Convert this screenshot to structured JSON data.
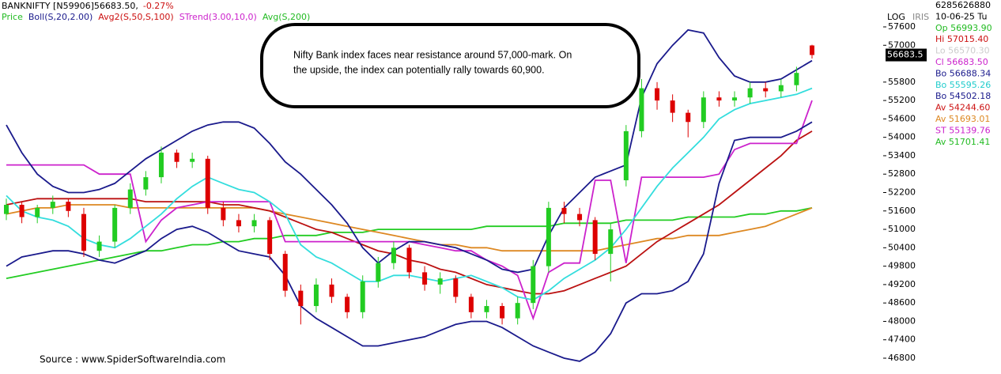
{
  "header": {
    "symbol": "BANKNIFTY [N59906]56683.50,",
    "change": "-0.27%",
    "legend": [
      {
        "name": "Price",
        "color": "#22bb22"
      },
      {
        "name": "Boll(S,20,2.00)",
        "color": "#1a1a8c"
      },
      {
        "name": "Avg2(S,50,S,100)",
        "color": "#cc1111"
      },
      {
        "name": "STrend(3.00,10,0)",
        "color": "#cc22cc"
      },
      {
        "name": "Avg(S,200)",
        "color": "#22bb22"
      }
    ]
  },
  "annotation": {
    "lines": [
      "Nifty Bank index faces near resistance around 57,000-mark. On",
      "the upside, the index can potentially rally towards 60,900."
    ]
  },
  "source": "Source : www.SpiderSoftwareIndia.com",
  "corner": {
    "log": "LOG",
    "iris": "IRIS"
  },
  "panel": [
    {
      "text": "6285626880",
      "color": "#000000"
    },
    {
      "text": "10-06-25 Tu",
      "color": "#000000"
    },
    {
      "text": "Op 56993.90",
      "color": "#22bb22"
    },
    {
      "text": "Hi 57015.40",
      "color": "#cc1111"
    },
    {
      "text": "Lo 56570.30",
      "color": "#cccccc"
    },
    {
      "text": "Cl 56683.50",
      "color": "#cc22cc"
    },
    {
      "text": "Bo 56688.34",
      "color": "#1a1a8c"
    },
    {
      "text": "Bo 55595.26",
      "color": "#22cccc"
    },
    {
      "text": "Bo 54502.18",
      "color": "#1a1a8c"
    },
    {
      "text": "Av 54244.60",
      "color": "#cc1111"
    },
    {
      "text": "Av 51693.01",
      "color": "#dd8822"
    },
    {
      "text": "ST 55139.76",
      "color": "#cc22cc"
    },
    {
      "text": "Av 51701.41",
      "color": "#22bb22"
    }
  ],
  "chart_data": {
    "type": "candlestick",
    "up_color": "#22cc22",
    "down_color": "#dd0000",
    "ylim": [
      46491,
      58476
    ],
    "yticks": [
      46800,
      47400,
      48000,
      48600,
      49200,
      49800,
      50400,
      51000,
      51600,
      52200,
      52800,
      53400,
      54000,
      54600,
      55200,
      55800,
      57000,
      57600
    ],
    "price_marker": 56683.5,
    "open": [
      51500,
      51800,
      51400,
      51700,
      51900,
      51500,
      50300,
      50600,
      51700,
      52300,
      52700,
      53500,
      53200,
      53300,
      51700,
      51300,
      51100,
      51300,
      50200,
      49000,
      48500,
      49200,
      48800,
      48300,
      49300,
      49900,
      50400,
      49600,
      49200,
      49400,
      48800,
      48300,
      48500,
      48100,
      48600,
      49800,
      51700,
      51500,
      51300,
      50200,
      52600,
      54200,
      55600,
      55200,
      54800,
      54500,
      55300,
      55200,
      55300,
      55600,
      55500,
      55700,
      56993.9
    ],
    "high": [
      52000,
      51900,
      51800,
      52100,
      52000,
      51700,
      50800,
      51800,
      52500,
      52900,
      53700,
      53600,
      53500,
      53400,
      51900,
      51500,
      51500,
      51400,
      50300,
      49200,
      49400,
      49400,
      48900,
      49500,
      50100,
      50600,
      50500,
      49800,
      49600,
      49500,
      48900,
      48700,
      48600,
      48800,
      50000,
      51900,
      51900,
      51700,
      51400,
      51200,
      54400,
      55900,
      55800,
      55400,
      54900,
      55500,
      55500,
      55500,
      55800,
      55800,
      55900,
      56300,
      57015.4
    ],
    "low": [
      51300,
      51200,
      51200,
      51500,
      51400,
      50100,
      50100,
      50400,
      51500,
      52100,
      52500,
      53000,
      53000,
      51500,
      51100,
      50900,
      50900,
      50000,
      48800,
      47900,
      48300,
      48600,
      48100,
      48100,
      49100,
      49700,
      49400,
      49000,
      48900,
      48600,
      48100,
      48100,
      47900,
      47900,
      48400,
      49600,
      51200,
      51100,
      50000,
      49300,
      52400,
      54000,
      54900,
      54500,
      54000,
      54300,
      55000,
      55000,
      55100,
      55300,
      55300,
      55500,
      56570.3
    ],
    "close": [
      51800,
      51400,
      51700,
      51900,
      51600,
      50300,
      50600,
      51700,
      52300,
      52700,
      53500,
      53200,
      53300,
      51700,
      51300,
      51100,
      51300,
      50200,
      49000,
      48500,
      49200,
      48800,
      48300,
      49300,
      49900,
      50400,
      49600,
      49200,
      49400,
      48800,
      48300,
      48500,
      48100,
      48600,
      49800,
      51700,
      51500,
      51300,
      50200,
      51000,
      54200,
      55600,
      55200,
      54800,
      54500,
      55300,
      55200,
      55300,
      55600,
      55500,
      55700,
      56100,
      56683.5
    ],
    "series": [
      {
        "color": "#22cc22",
        "values": [
          49400,
          49500,
          49600,
          49700,
          49800,
          49900,
          50000,
          50100,
          50200,
          50300,
          50300,
          50400,
          50500,
          50500,
          50600,
          50600,
          50700,
          50700,
          50800,
          50800,
          50800,
          50900,
          50900,
          50900,
          51000,
          51000,
          51000,
          51000,
          51000,
          51000,
          51000,
          51100,
          51100,
          51100,
          51100,
          51100,
          51200,
          51200,
          51200,
          51200,
          51300,
          51300,
          51300,
          51300,
          51400,
          51400,
          51400,
          51400,
          51500,
          51500,
          51600,
          51600,
          51700
        ]
      },
      {
        "color": "#dd8822",
        "values": [
          51500,
          51600,
          51700,
          51700,
          51800,
          51800,
          51800,
          51800,
          51700,
          51700,
          51700,
          51700,
          51700,
          51700,
          51700,
          51700,
          51700,
          51600,
          51500,
          51400,
          51300,
          51200,
          51100,
          51000,
          50900,
          50800,
          50700,
          50600,
          50500,
          50500,
          50400,
          50400,
          50300,
          50300,
          50300,
          50300,
          50300,
          50300,
          50300,
          50400,
          50500,
          50600,
          50700,
          50700,
          50800,
          50800,
          50800,
          50900,
          51000,
          51100,
          51300,
          51500,
          51700
        ]
      },
      {
        "color": "#bb1111",
        "values": [
          51800,
          51900,
          52000,
          52000,
          52000,
          52000,
          52000,
          52000,
          52000,
          51900,
          51900,
          51900,
          51900,
          51900,
          51800,
          51800,
          51700,
          51600,
          51400,
          51200,
          51000,
          50900,
          50700,
          50500,
          50300,
          50200,
          50000,
          49900,
          49700,
          49600,
          49400,
          49200,
          49100,
          49000,
          48900,
          48900,
          49000,
          49200,
          49400,
          49600,
          49800,
          50200,
          50600,
          50900,
          51200,
          51500,
          51800,
          52200,
          52600,
          53000,
          53400,
          53900,
          54200
        ]
      },
      {
        "color": "#cc22cc",
        "values": [
          53100,
          53100,
          53100,
          53100,
          53100,
          53100,
          52800,
          52800,
          52800,
          50600,
          51300,
          51700,
          51800,
          51900,
          51900,
          51900,
          51900,
          51900,
          50600,
          50600,
          50600,
          50600,
          50600,
          50600,
          50600,
          50600,
          50600,
          50500,
          50400,
          50300,
          50300,
          50000,
          49800,
          49500,
          48100,
          49600,
          49900,
          49900,
          52600,
          52600,
          49900,
          52700,
          52700,
          52700,
          52700,
          52700,
          52800,
          53600,
          53800,
          53800,
          53800,
          53800,
          55200
        ]
      },
      {
        "color": "#33dddd",
        "values": [
          52100,
          51600,
          51400,
          51300,
          51100,
          50700,
          50500,
          50400,
          50700,
          51100,
          51500,
          52000,
          52400,
          52700,
          52500,
          52300,
          52200,
          51900,
          51500,
          50500,
          50100,
          49900,
          49600,
          49300,
          49300,
          49500,
          49500,
          49400,
          49300,
          49400,
          49500,
          49300,
          49100,
          48800,
          48700,
          49000,
          49400,
          49700,
          50000,
          50400,
          51000,
          51700,
          52400,
          53000,
          53500,
          54000,
          54600,
          54900,
          55100,
          55200,
          55300,
          55400,
          55600
        ]
      },
      {
        "color": "#1a1a8c",
        "values": [
          54400,
          53500,
          52800,
          52400,
          52200,
          52200,
          52300,
          52500,
          52900,
          53300,
          53600,
          53900,
          54200,
          54400,
          54500,
          54500,
          54300,
          53800,
          53200,
          52800,
          52300,
          51800,
          51200,
          50400,
          49900,
          50300,
          50600,
          50600,
          50500,
          50400,
          50200,
          50000,
          49700,
          49600,
          49700,
          50800,
          51700,
          52200,
          52700,
          52900,
          53100,
          55300,
          56400,
          57000,
          57500,
          57400,
          56600,
          56000,
          55800,
          55800,
          55900,
          56200,
          56500
        ]
      },
      {
        "color": "#1a1a8c",
        "values": [
          49800,
          50100,
          50200,
          50300,
          50300,
          50200,
          50000,
          49900,
          50100,
          50300,
          50700,
          51000,
          51100,
          50900,
          50600,
          50300,
          50200,
          50100,
          49500,
          48500,
          48100,
          47800,
          47500,
          47200,
          47200,
          47300,
          47400,
          47500,
          47700,
          47900,
          48000,
          48000,
          47800,
          47500,
          47200,
          47000,
          46800,
          46700,
          47000,
          47600,
          48600,
          48900,
          48900,
          49000,
          49300,
          50200,
          52500,
          53900,
          54000,
          54000,
          54000,
          54200,
          54500
        ]
      }
    ]
  }
}
